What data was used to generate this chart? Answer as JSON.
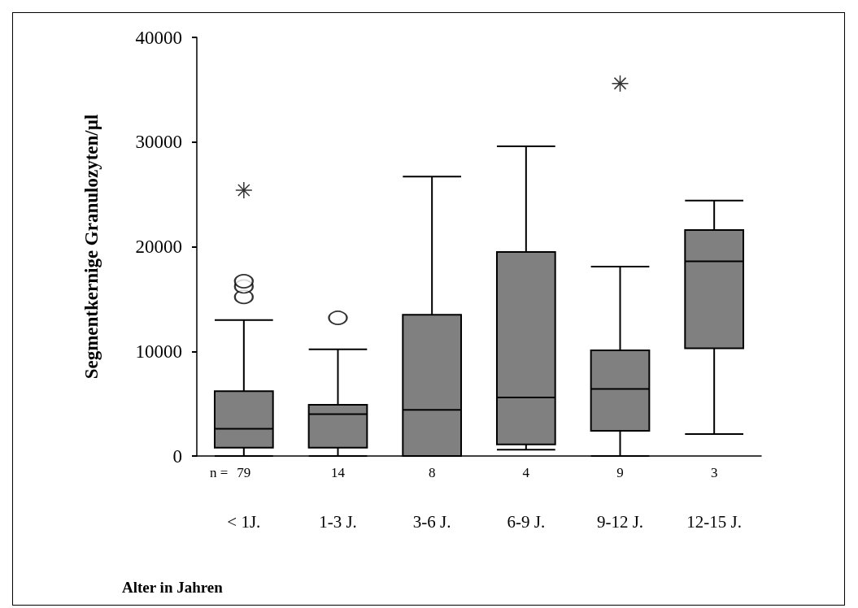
{
  "chart_data": {
    "type": "box",
    "categories": [
      "< 1J.",
      "1-3 J.",
      "3-6 J.",
      "6-9 J.",
      "9-12 J.",
      "12-15 J."
    ],
    "xlabel": "Alter in Jahren",
    "ylabel": "Segmentkernige Granulozyten/µl",
    "ylim": [
      0,
      40000
    ],
    "yticks": [
      0,
      10000,
      20000,
      30000,
      40000
    ],
    "color": "#808080",
    "grid": false,
    "boxes": [
      {
        "low": 0,
        "q1": 800,
        "median": 2600,
        "q3": 6200,
        "high": 13000,
        "outliers": [
          15200,
          16200,
          16700,
          25400
        ]
      },
      {
        "low": 0,
        "q1": 800,
        "median": 4000,
        "q3": 4900,
        "high": 10200,
        "outliers": [
          13200
        ]
      },
      {
        "low": 0,
        "q1": 0,
        "median": 4400,
        "q3": 13500,
        "high": 26700
      },
      {
        "low": 600,
        "q1": 1100,
        "median": 5600,
        "q3": 19500,
        "high": 29600
      },
      {
        "low": 0,
        "q1": 2400,
        "median": 6400,
        "q3": 10100,
        "high": 18100,
        "outliers": [
          35600
        ]
      },
      {
        "low": 2100,
        "q1": 10300,
        "median": 18600,
        "q3": 21600,
        "high": 24400
      }
    ],
    "annotations": [
      "n =",
      "79",
      "14",
      "8",
      "4",
      "9",
      "3"
    ]
  }
}
